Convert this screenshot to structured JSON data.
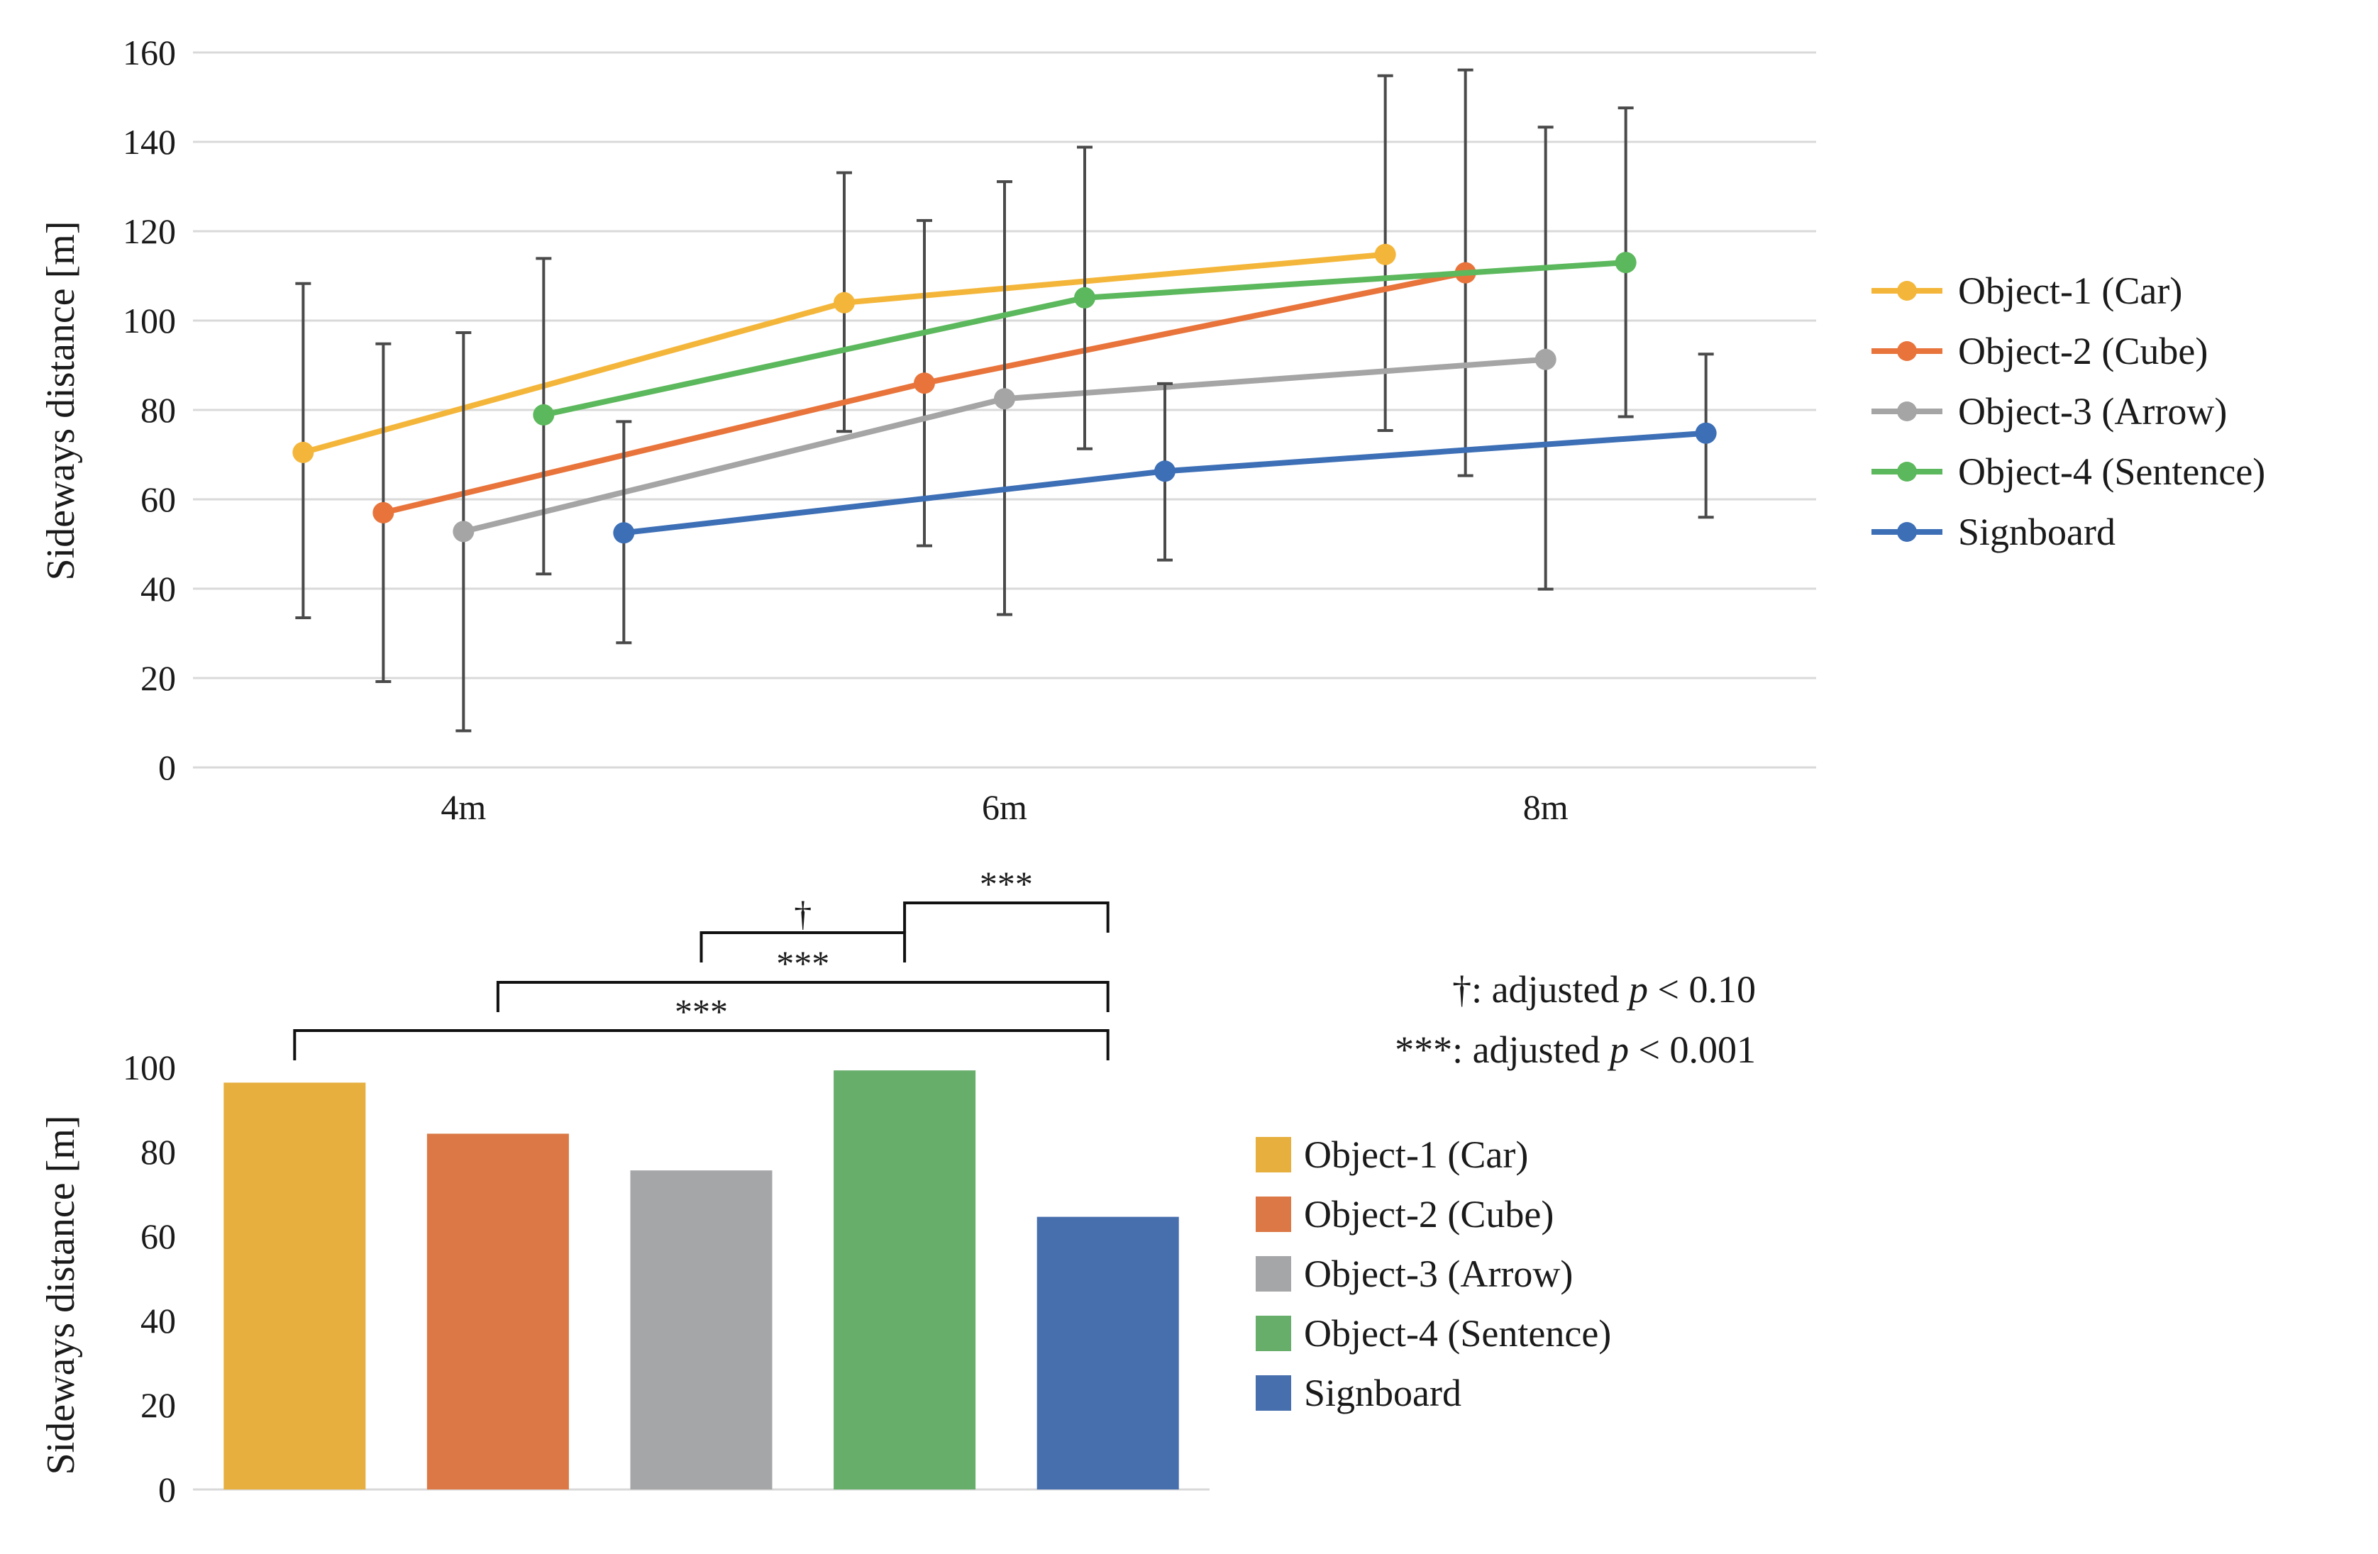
{
  "chart_data": [
    {
      "type": "line",
      "ylabel": "Sideways distance [m]",
      "ylim": [
        0,
        160
      ],
      "yticks": [
        0,
        20,
        40,
        60,
        80,
        100,
        120,
        140,
        160
      ],
      "categories": [
        "4m",
        "6m",
        "8m"
      ],
      "grid": true,
      "legend_position": "right",
      "series": [
        {
          "name": "Object-1 (Car)",
          "color": "#F4B63A",
          "values": [
            70.5,
            104,
            114.8
          ],
          "err_low": [
            33.5,
            75.2,
            75.4
          ],
          "err_high": [
            108.3,
            133.1,
            154.8
          ]
        },
        {
          "name": "Object-2 (Cube)",
          "color": "#E8743B",
          "values": [
            57,
            86,
            110.7
          ],
          "err_low": [
            19.2,
            49.6,
            65.3
          ],
          "err_high": [
            94.8,
            122.4,
            156.1
          ]
        },
        {
          "name": "Object-3 (Arrow)",
          "color": "#A5A5A5",
          "values": [
            52.8,
            82.5,
            91.3
          ],
          "err_low": [
            8.2,
            34.2,
            39.9
          ],
          "err_high": [
            97.3,
            131.1,
            143.3
          ]
        },
        {
          "name": "Object-4 (Sentence)",
          "color": "#5CB85C",
          "values": [
            78.9,
            105.1,
            113
          ],
          "err_low": [
            43.3,
            71.3,
            78.5
          ],
          "err_high": [
            113.9,
            138.8,
            147.6
          ]
        },
        {
          "name": "Signboard",
          "color": "#3D6FB6",
          "values": [
            52.5,
            66.3,
            74.8
          ],
          "err_low": [
            27.9,
            46.4,
            56
          ],
          "err_high": [
            77.4,
            85.9,
            92.5
          ]
        }
      ]
    },
    {
      "type": "bar",
      "ylabel": "Sideways distance [m]",
      "ylim": [
        0,
        100
      ],
      "yticks": [
        0,
        20,
        40,
        60,
        80,
        100
      ],
      "legend_position": "right",
      "series": [
        {
          "name": "Object-1 (Car)",
          "color": "#E6AF3E",
          "value": 96.4
        },
        {
          "name": "Object-2 (Cube)",
          "color": "#DB7845",
          "value": 84.3
        },
        {
          "name": "Object-3 (Arrow)",
          "color": "#A5A6A8",
          "value": 75.6
        },
        {
          "name": "Object-4 (Sentence)",
          "color": "#68AE6B",
          "value": 99.3
        },
        {
          "name": "Signboard",
          "color": "#476EAD",
          "value": 64.6
        }
      ],
      "significance": [
        {
          "from": "Object-4 (Sentence)",
          "to": "Signboard",
          "label": "***"
        },
        {
          "from": "Object-3 (Arrow)",
          "to": "Object-4 (Sentence)",
          "label": "†"
        },
        {
          "from": "Object-2 (Cube)",
          "to": "Signboard",
          "label": "***"
        },
        {
          "from": "Object-1 (Car)",
          "to": "Signboard",
          "label": "***"
        }
      ],
      "notes": [
        "†: adjusted ",
        "p",
        " < 0.10",
        "***: adjusted ",
        "p",
        " < 0.001"
      ]
    }
  ]
}
